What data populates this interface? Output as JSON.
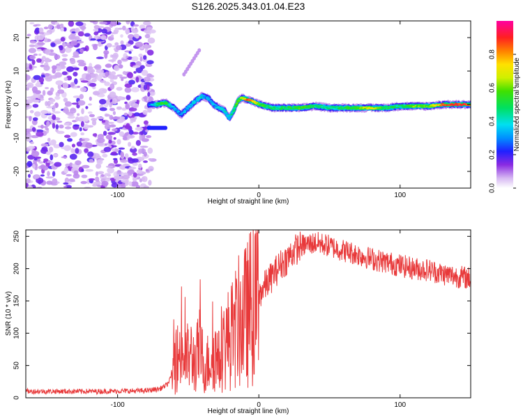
{
  "title": "S126.2025.343.01.04.E23",
  "chart_data": [
    {
      "type": "heatmap",
      "title": "S126.2025.343.01.04.E23",
      "xlabel": "Height of straight line (km)",
      "ylabel": "Frequency (Hz)",
      "xlim": [
        -165,
        150
      ],
      "ylim": [
        -25,
        25
      ],
      "xticks": [
        -100,
        0,
        100
      ],
      "yticks": [
        -20,
        -10,
        0,
        10,
        20
      ],
      "colorbar": {
        "label": "Normalized spectral amplitude",
        "range": [
          0,
          1
        ],
        "ticks": [
          0.0,
          0.2,
          0.4,
          0.6,
          0.8
        ]
      },
      "ridge": {
        "x": [
          -78,
          -72,
          -66,
          -60,
          -55,
          -50,
          -45,
          -40,
          -36,
          -32,
          -28,
          -24,
          -21,
          -18,
          -15,
          -12,
          -8,
          -5,
          -2,
          1,
          5,
          10,
          20,
          30,
          40,
          50,
          60,
          70,
          80,
          90,
          100,
          110,
          120,
          130,
          140,
          150
        ],
        "y": [
          0,
          0,
          0.5,
          -1,
          -3,
          -1,
          1,
          2.5,
          2,
          0,
          -1,
          -2,
          -4,
          -2,
          1,
          2,
          1.5,
          1,
          0.5,
          0,
          -0.5,
          -1,
          -1,
          -1,
          -0.5,
          -1,
          -1,
          -1,
          -1,
          -1,
          -0.5,
          -0.5,
          -0.5,
          0,
          0,
          0
        ],
        "amplitude": [
          0.25,
          0.45,
          0.55,
          0.3,
          0.3,
          0.35,
          0.35,
          0.4,
          0.3,
          0.3,
          0.35,
          0.4,
          0.35,
          0.45,
          0.6,
          0.6,
          0.85,
          0.8,
          0.7,
          0.6,
          0.5,
          0.45,
          0.5,
          0.55,
          0.5,
          0.45,
          0.5,
          0.55,
          0.7,
          0.5,
          0.45,
          0.6,
          0.55,
          0.85,
          0.9,
          0.85
        ]
      },
      "noise_region_x": [
        -165,
        -75
      ]
    },
    {
      "type": "line",
      "xlabel": "Height of straight line (km)",
      "ylabel": "SNR (10 * v/v)",
      "xlim": [
        -165,
        150
      ],
      "ylim": [
        0,
        260
      ],
      "xticks": [
        -100,
        0,
        100
      ],
      "yticks": [
        0,
        50,
        100,
        150,
        200,
        250
      ],
      "series": [
        {
          "name": "SNR",
          "color": "#e8393a",
          "x": [
            -165,
            -140,
            -110,
            -80,
            -70,
            -65,
            -60,
            -58,
            -55,
            -52,
            -48,
            -45,
            -42,
            -38,
            -35,
            -32,
            -28,
            -25,
            -22,
            -18,
            -15,
            -12,
            -8,
            -5,
            0,
            5,
            10,
            15,
            20,
            25,
            30,
            35,
            40,
            45,
            50,
            60,
            70,
            80,
            90,
            100,
            110,
            120,
            130,
            140,
            150
          ],
          "y": [
            10,
            10,
            10,
            11,
            14,
            20,
            40,
            60,
            75,
            60,
            65,
            55,
            75,
            45,
            60,
            70,
            55,
            80,
            90,
            100,
            115,
            120,
            130,
            145,
            160,
            175,
            190,
            205,
            215,
            228,
            235,
            238,
            240,
            238,
            235,
            228,
            222,
            215,
            210,
            205,
            200,
            198,
            192,
            188,
            185
          ]
        }
      ]
    }
  ]
}
